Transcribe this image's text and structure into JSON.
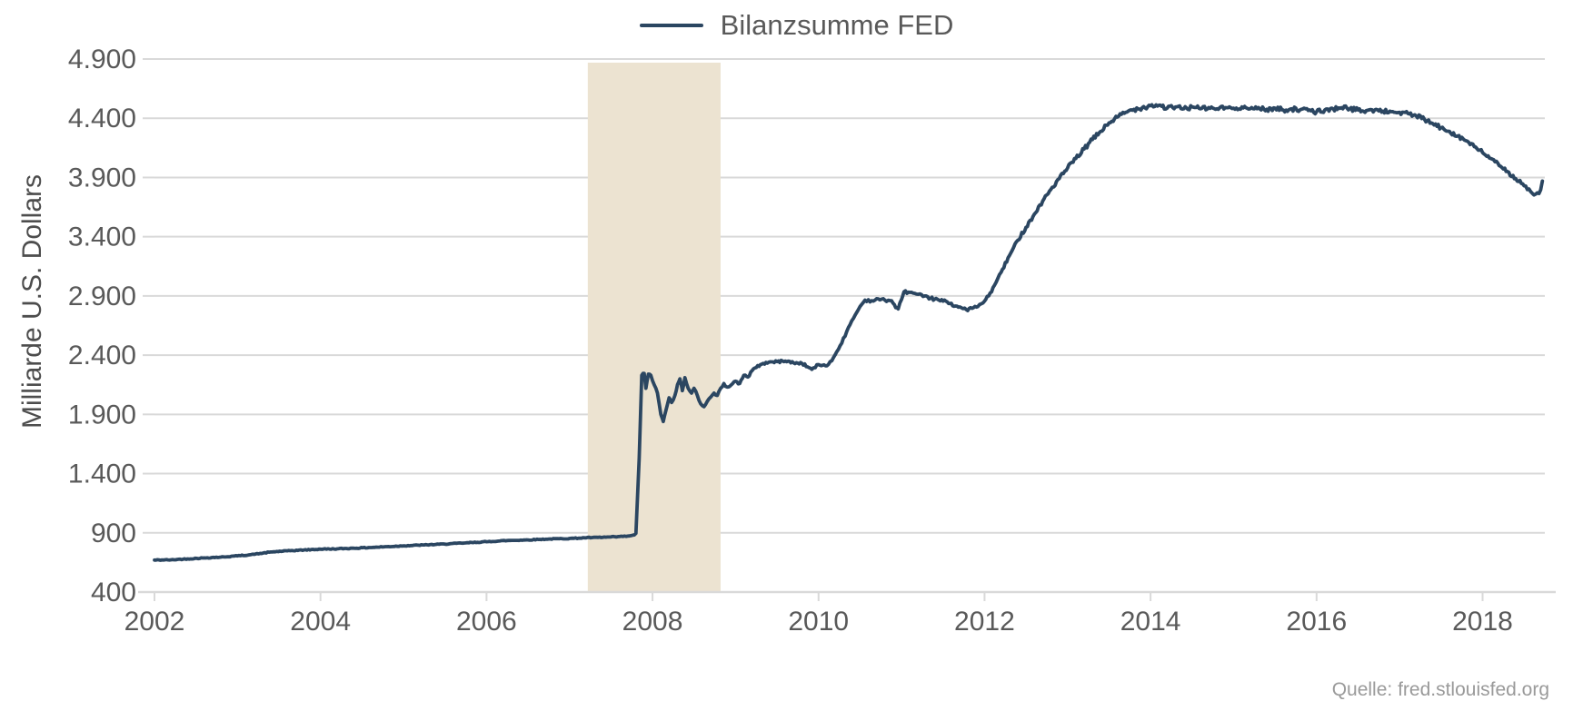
{
  "figure": {
    "legend": {
      "label": "Bilanzsumme FED"
    },
    "source": "Quelle: fred.stlouisfed.org"
  },
  "chart_data": {
    "type": "line",
    "title": "",
    "xlabel": "",
    "ylabel": "Milliarde U.S. Dollars",
    "source": "Quelle: fred.stlouisfed.org",
    "legend_position": "top-center",
    "grid": true,
    "ylim": [
      400,
      4900
    ],
    "xlim": [
      2002,
      2018.75
    ],
    "y_ticks": [
      {
        "value": 400,
        "label": "400"
      },
      {
        "value": 900,
        "label": "900"
      },
      {
        "value": 1400,
        "label": "1.400"
      },
      {
        "value": 1900,
        "label": "1.900"
      },
      {
        "value": 2400,
        "label": "2.400"
      },
      {
        "value": 2900,
        "label": "2.900"
      },
      {
        "value": 3400,
        "label": "3.400"
      },
      {
        "value": 3900,
        "label": "3.900"
      },
      {
        "value": 4400,
        "label": "4.400"
      },
      {
        "value": 4900,
        "label": "4.900"
      }
    ],
    "x_ticks": [
      {
        "value": 2002,
        "label": "2002"
      },
      {
        "value": 2004,
        "label": "2004"
      },
      {
        "value": 2006,
        "label": "2006"
      },
      {
        "value": 2008,
        "label": "2008"
      },
      {
        "value": 2010,
        "label": "2010"
      },
      {
        "value": 2012,
        "label": "2012"
      },
      {
        "value": 2014,
        "label": "2014"
      },
      {
        "value": 2016,
        "label": "2016"
      },
      {
        "value": 2018,
        "label": "2018"
      }
    ],
    "shaded_band": {
      "x_from": 2007.22,
      "x_to": 2008.82,
      "color": "#ece3d1"
    },
    "series": [
      {
        "name": "Bilanzsumme FED",
        "color": "#2b4661",
        "unit": "Milliarde U.S. Dollars",
        "points": [
          [
            2002.0,
            670
          ],
          [
            2002.2,
            672
          ],
          [
            2002.4,
            680
          ],
          [
            2002.6,
            688
          ],
          [
            2002.8,
            695
          ],
          [
            2003.0,
            705
          ],
          [
            2003.2,
            718
          ],
          [
            2003.4,
            738
          ],
          [
            2003.6,
            748
          ],
          [
            2003.8,
            755
          ],
          [
            2004.0,
            762
          ],
          [
            2004.2,
            765
          ],
          [
            2004.4,
            770
          ],
          [
            2004.6,
            776
          ],
          [
            2004.8,
            783
          ],
          [
            2005.0,
            790
          ],
          [
            2005.25,
            798
          ],
          [
            2005.5,
            805
          ],
          [
            2005.75,
            815
          ],
          [
            2006.0,
            825
          ],
          [
            2006.25,
            835
          ],
          [
            2006.5,
            840
          ],
          [
            2006.75,
            848
          ],
          [
            2007.0,
            852
          ],
          [
            2007.2,
            858
          ],
          [
            2007.4,
            862
          ],
          [
            2007.55,
            866
          ],
          [
            2007.7,
            872
          ],
          [
            2007.78,
            882
          ],
          [
            2007.8,
            895
          ],
          [
            2007.84,
            1530
          ],
          [
            2007.87,
            2230
          ],
          [
            2007.9,
            2245
          ],
          [
            2007.92,
            2120
          ],
          [
            2007.95,
            2240
          ],
          [
            2007.98,
            2230
          ],
          [
            2008.02,
            2150
          ],
          [
            2008.06,
            2080
          ],
          [
            2008.1,
            1900
          ],
          [
            2008.13,
            1840
          ],
          [
            2008.16,
            1930
          ],
          [
            2008.2,
            2040
          ],
          [
            2008.23,
            2000
          ],
          [
            2008.27,
            2060
          ],
          [
            2008.3,
            2150
          ],
          [
            2008.33,
            2200
          ],
          [
            2008.36,
            2100
          ],
          [
            2008.39,
            2210
          ],
          [
            2008.43,
            2120
          ],
          [
            2008.47,
            2080
          ],
          [
            2008.5,
            2120
          ],
          [
            2008.54,
            2060
          ],
          [
            2008.58,
            1990
          ],
          [
            2008.62,
            1965
          ],
          [
            2008.66,
            2010
          ],
          [
            2008.7,
            2045
          ],
          [
            2008.74,
            2080
          ],
          [
            2008.78,
            2060
          ],
          [
            2008.82,
            2120
          ],
          [
            2008.86,
            2160
          ],
          [
            2008.9,
            2130
          ],
          [
            2008.95,
            2150
          ],
          [
            2009.0,
            2180
          ],
          [
            2009.05,
            2160
          ],
          [
            2009.1,
            2230
          ],
          [
            2009.15,
            2215
          ],
          [
            2009.2,
            2270
          ],
          [
            2009.3,
            2320
          ],
          [
            2009.4,
            2340
          ],
          [
            2009.5,
            2345
          ],
          [
            2009.6,
            2350
          ],
          [
            2009.7,
            2335
          ],
          [
            2009.8,
            2330
          ],
          [
            2009.92,
            2280
          ],
          [
            2010.0,
            2320
          ],
          [
            2010.1,
            2310
          ],
          [
            2010.18,
            2380
          ],
          [
            2010.26,
            2480
          ],
          [
            2010.34,
            2600
          ],
          [
            2010.42,
            2710
          ],
          [
            2010.5,
            2810
          ],
          [
            2010.56,
            2865
          ],
          [
            2010.64,
            2860
          ],
          [
            2010.72,
            2875
          ],
          [
            2010.8,
            2865
          ],
          [
            2010.88,
            2860
          ],
          [
            2010.93,
            2800
          ],
          [
            2010.96,
            2790
          ],
          [
            2011.0,
            2870
          ],
          [
            2011.03,
            2935
          ],
          [
            2011.1,
            2930
          ],
          [
            2011.18,
            2915
          ],
          [
            2011.26,
            2895
          ],
          [
            2011.35,
            2880
          ],
          [
            2011.45,
            2865
          ],
          [
            2011.55,
            2850
          ],
          [
            2011.65,
            2815
          ],
          [
            2011.72,
            2800
          ],
          [
            2011.78,
            2785
          ],
          [
            2011.85,
            2795
          ],
          [
            2011.92,
            2810
          ],
          [
            2011.98,
            2840
          ],
          [
            2012.05,
            2900
          ],
          [
            2012.12,
            2990
          ],
          [
            2012.2,
            3100
          ],
          [
            2012.3,
            3240
          ],
          [
            2012.4,
            3370
          ],
          [
            2012.5,
            3480
          ],
          [
            2012.6,
            3590
          ],
          [
            2012.7,
            3700
          ],
          [
            2012.8,
            3800
          ],
          [
            2012.9,
            3890
          ],
          [
            2013.0,
            3980
          ],
          [
            2013.1,
            4060
          ],
          [
            2013.2,
            4140
          ],
          [
            2013.3,
            4220
          ],
          [
            2013.4,
            4290
          ],
          [
            2013.5,
            4360
          ],
          [
            2013.6,
            4410
          ],
          [
            2013.7,
            4450
          ],
          [
            2013.8,
            4475
          ],
          [
            2013.9,
            4490
          ],
          [
            2014.0,
            4505
          ],
          [
            2014.1,
            4510
          ],
          [
            2014.2,
            4485
          ],
          [
            2014.3,
            4495
          ],
          [
            2014.4,
            4480
          ],
          [
            2014.5,
            4495
          ],
          [
            2014.6,
            4480
          ],
          [
            2014.7,
            4490
          ],
          [
            2014.8,
            4480
          ],
          [
            2014.9,
            4490
          ],
          [
            2015.0,
            4485
          ],
          [
            2015.1,
            4495
          ],
          [
            2015.2,
            4480
          ],
          [
            2015.3,
            4490
          ],
          [
            2015.4,
            4475
          ],
          [
            2015.5,
            4485
          ],
          [
            2015.6,
            4470
          ],
          [
            2015.7,
            4480
          ],
          [
            2015.8,
            4470
          ],
          [
            2015.9,
            4465
          ],
          [
            2016.0,
            4455
          ],
          [
            2016.1,
            4470
          ],
          [
            2016.2,
            4480
          ],
          [
            2016.3,
            4490
          ],
          [
            2016.4,
            4480
          ],
          [
            2016.5,
            4470
          ],
          [
            2016.6,
            4465
          ],
          [
            2016.7,
            4470
          ],
          [
            2016.8,
            4460
          ],
          [
            2016.9,
            4455
          ],
          [
            2017.0,
            4450
          ],
          [
            2017.1,
            4440
          ],
          [
            2017.2,
            4420
          ],
          [
            2017.3,
            4390
          ],
          [
            2017.4,
            4355
          ],
          [
            2017.5,
            4320
          ],
          [
            2017.6,
            4290
          ],
          [
            2017.7,
            4250
          ],
          [
            2017.8,
            4210
          ],
          [
            2017.9,
            4160
          ],
          [
            2018.0,
            4110
          ],
          [
            2018.1,
            4060
          ],
          [
            2018.2,
            4000
          ],
          [
            2018.3,
            3950
          ],
          [
            2018.4,
            3890
          ],
          [
            2018.5,
            3830
          ],
          [
            2018.58,
            3780
          ],
          [
            2018.64,
            3760
          ],
          [
            2018.68,
            3765
          ],
          [
            2018.7,
            3795
          ],
          [
            2018.72,
            3870
          ]
        ]
      }
    ],
    "style": {
      "line_width": 3.8,
      "grid_color": "#d9d9d9",
      "tick_label_color": "#595959",
      "source_color": "#9a9a9a",
      "background": "#ffffff",
      "noise": {
        "seed": 42,
        "rel_amp": 0.0042,
        "min_amp": 3.5,
        "skip_jump": 400,
        "step": 0.018
      }
    }
  }
}
